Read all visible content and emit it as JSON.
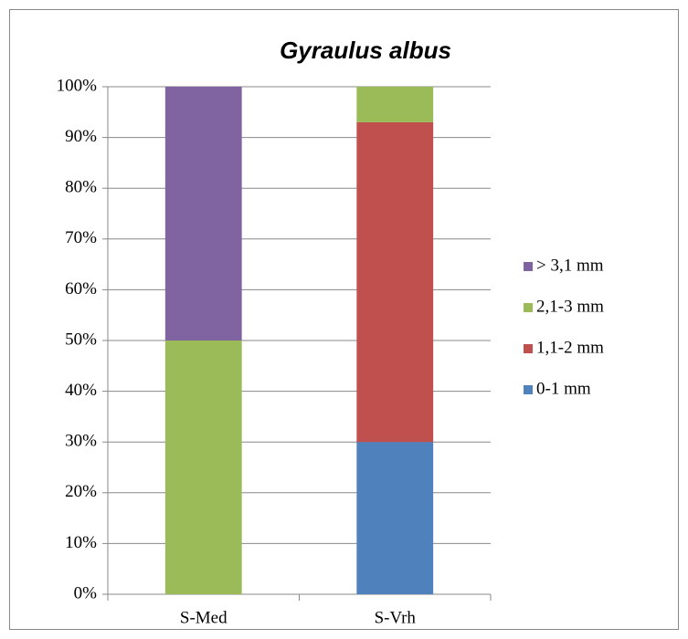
{
  "chart_data": {
    "type": "stacked_bar",
    "title": "Gyraulus albus",
    "categories": [
      "S-Med",
      "S-Vrh"
    ],
    "series": [
      {
        "name": "0-1 mm",
        "color": "#4f81bd",
        "values": [
          0,
          30
        ]
      },
      {
        "name": "1,1-2 mm",
        "color": "#c0504d",
        "values": [
          0,
          63
        ]
      },
      {
        "name": "2,1-3 mm",
        "color": "#9bbb59",
        "values": [
          50,
          7
        ]
      },
      {
        "name": "> 3,1 mm",
        "color": "#8064a2",
        "values": [
          50,
          0
        ]
      }
    ],
    "ylim": [
      0,
      100
    ],
    "yticks": [
      {
        "value": 0,
        "label": "0%"
      },
      {
        "value": 10,
        "label": "10%"
      },
      {
        "value": 20,
        "label": "20%"
      },
      {
        "value": 30,
        "label": "30%"
      },
      {
        "value": 40,
        "label": "40%"
      },
      {
        "value": 50,
        "label": "50%"
      },
      {
        "value": 60,
        "label": "60%"
      },
      {
        "value": 70,
        "label": "70%"
      },
      {
        "value": 80,
        "label": "80%"
      },
      {
        "value": 90,
        "label": "90%"
      },
      {
        "value": 100,
        "label": "100%"
      }
    ],
    "grid": true,
    "legend": "right"
  }
}
